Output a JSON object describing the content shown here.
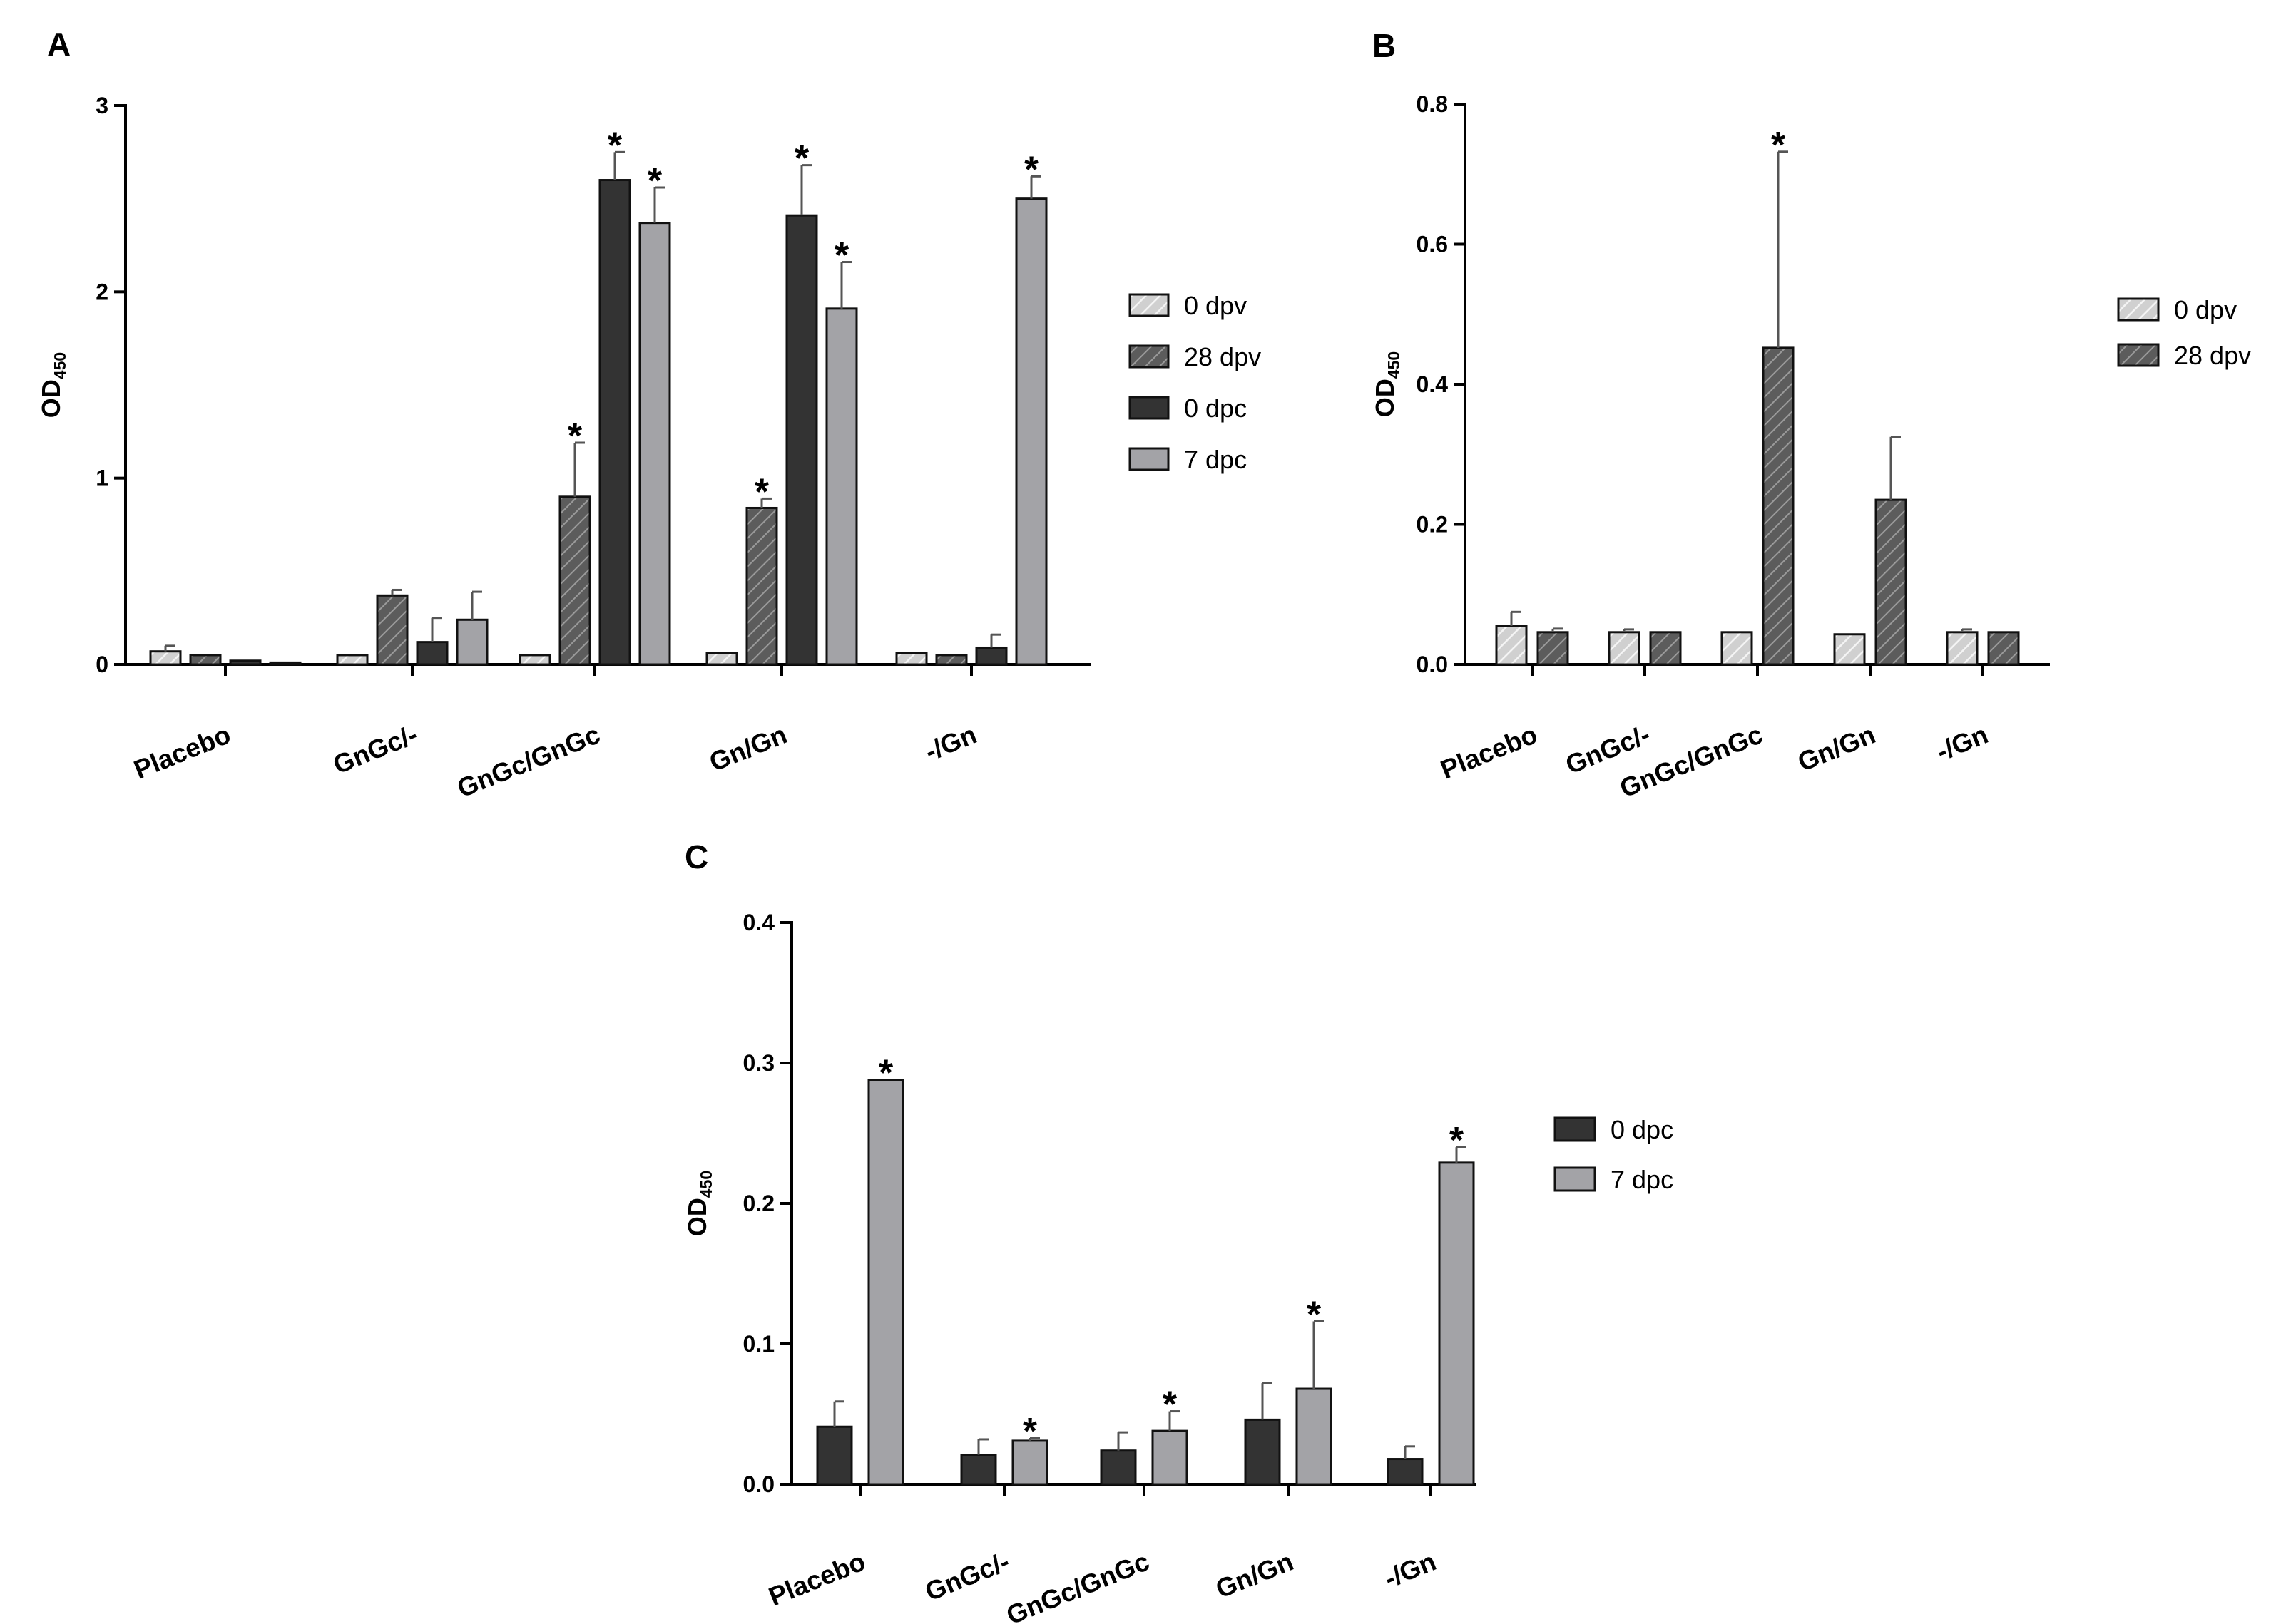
{
  "colors": {
    "light_hatched": "#d0d0d0",
    "dark_hatched": "#5c5c5c",
    "dark_solid": "#333333",
    "light_solid": "#a3a3a7",
    "axis": "#000000",
    "error_bar": "#555555"
  },
  "chart_data": [
    {
      "panel": "A",
      "type": "bar",
      "title": "",
      "ylabel": "OD",
      "ylabel_subscript": "450",
      "ylim": [
        0,
        3
      ],
      "yticks": [
        0,
        1,
        2,
        3
      ],
      "ytick_labels": [
        "0",
        "1",
        "2",
        "3"
      ],
      "grid": false,
      "legend_position": "right",
      "categories": [
        "Placebo",
        "GnGc/-",
        "GnGc/GnGc",
        "Gn/Gn",
        "-/Gn"
      ],
      "series": [
        {
          "name": "0 dpv",
          "style": "light_hatched",
          "values": [
            0.07,
            0.05,
            0.05,
            0.06,
            0.06
          ],
          "errors": [
            0.03,
            0,
            0,
            0,
            0
          ],
          "significant": [
            false,
            false,
            false,
            false,
            false
          ]
        },
        {
          "name": "28 dpv",
          "style": "dark_hatched",
          "values": [
            0.05,
            0.37,
            0.9,
            0.84,
            0.05
          ],
          "errors": [
            0,
            0.03,
            0.29,
            0.05,
            0
          ],
          "significant": [
            false,
            false,
            true,
            true,
            false
          ]
        },
        {
          "name": "0 dpc",
          "style": "dark_solid",
          "values": [
            0.02,
            0.12,
            2.6,
            2.41,
            0.09
          ],
          "errors": [
            0,
            0.13,
            0.15,
            0.27,
            0.07
          ],
          "significant": [
            false,
            false,
            true,
            true,
            false
          ]
        },
        {
          "name": "7 dpc",
          "style": "light_solid",
          "values": [
            0.01,
            0.24,
            2.37,
            1.91,
            2.5
          ],
          "errors": [
            0,
            0.15,
            0.19,
            0.25,
            0.12
          ],
          "significant": [
            false,
            false,
            true,
            true,
            true
          ]
        }
      ],
      "annotations": [
        "*"
      ]
    },
    {
      "panel": "B",
      "type": "bar",
      "title": "",
      "ylabel": "OD",
      "ylabel_subscript": "450",
      "ylim": [
        0,
        0.8
      ],
      "yticks": [
        0,
        0.2,
        0.4,
        0.6,
        0.8
      ],
      "ytick_labels": [
        "0.0",
        "0.2",
        "0.4",
        "0.6",
        "0.8"
      ],
      "grid": false,
      "legend_position": "right",
      "categories": [
        "Placebo",
        "GnGc/-",
        "GnGc/GnGc",
        "Gn/Gn",
        "-/Gn"
      ],
      "series": [
        {
          "name": "0 dpv",
          "style": "light_hatched",
          "values": [
            0.055,
            0.046,
            0.046,
            0.043,
            0.046
          ],
          "errors": [
            0.02,
            0.004,
            0,
            0,
            0.004
          ],
          "significant": [
            false,
            false,
            false,
            false,
            false
          ]
        },
        {
          "name": "28 dpv",
          "style": "dark_hatched",
          "values": [
            0.046,
            0.046,
            0.452,
            0.235,
            0.046
          ],
          "errors": [
            0.005,
            0,
            0.28,
            0.09,
            0
          ],
          "significant": [
            false,
            false,
            true,
            false,
            false
          ]
        }
      ],
      "annotations": [
        "*"
      ]
    },
    {
      "panel": "C",
      "type": "bar",
      "title": "",
      "ylabel": "OD",
      "ylabel_subscript": "450",
      "ylim": [
        0,
        0.4
      ],
      "yticks": [
        0,
        0.1,
        0.2,
        0.3,
        0.4
      ],
      "ytick_labels": [
        "0.0",
        "0.1",
        "0.2",
        "0.3",
        "0.4"
      ],
      "grid": false,
      "legend_position": "right",
      "categories": [
        "Placebo",
        "GnGc/-",
        "GnGc/GnGc",
        "Gn/Gn",
        "-/Gn"
      ],
      "series": [
        {
          "name": "0 dpc",
          "style": "dark_solid",
          "values": [
            0.041,
            0.021,
            0.024,
            0.046,
            0.018
          ],
          "errors": [
            0.018,
            0.011,
            0.013,
            0.026,
            0.009
          ],
          "significant": [
            false,
            false,
            false,
            false,
            false
          ]
        },
        {
          "name": "7 dpc",
          "style": "light_solid",
          "values": [
            0.288,
            0.031,
            0.038,
            0.068,
            0.229
          ],
          "errors": [
            0,
            0.002,
            0.014,
            0.048,
            0.011
          ],
          "significant": [
            true,
            true,
            true,
            true,
            true
          ]
        }
      ],
      "annotations": [
        "*"
      ]
    }
  ]
}
